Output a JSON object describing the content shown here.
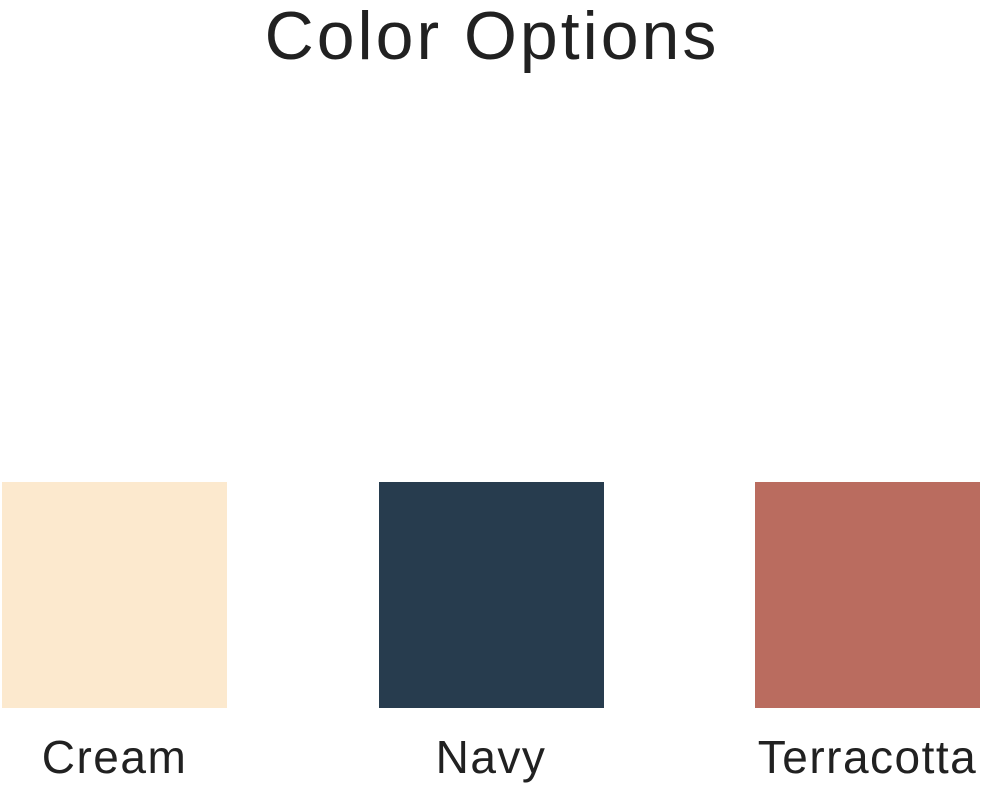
{
  "page": {
    "title": "Color Options",
    "background": "#ffffff",
    "text_color": "#212121"
  },
  "color_options": [
    {
      "label": "Cream",
      "hex": "#FCE9CE"
    },
    {
      "label": "Navy",
      "hex": "#273C4E"
    },
    {
      "label": "Terracotta",
      "hex": "#BA6C5F"
    }
  ]
}
